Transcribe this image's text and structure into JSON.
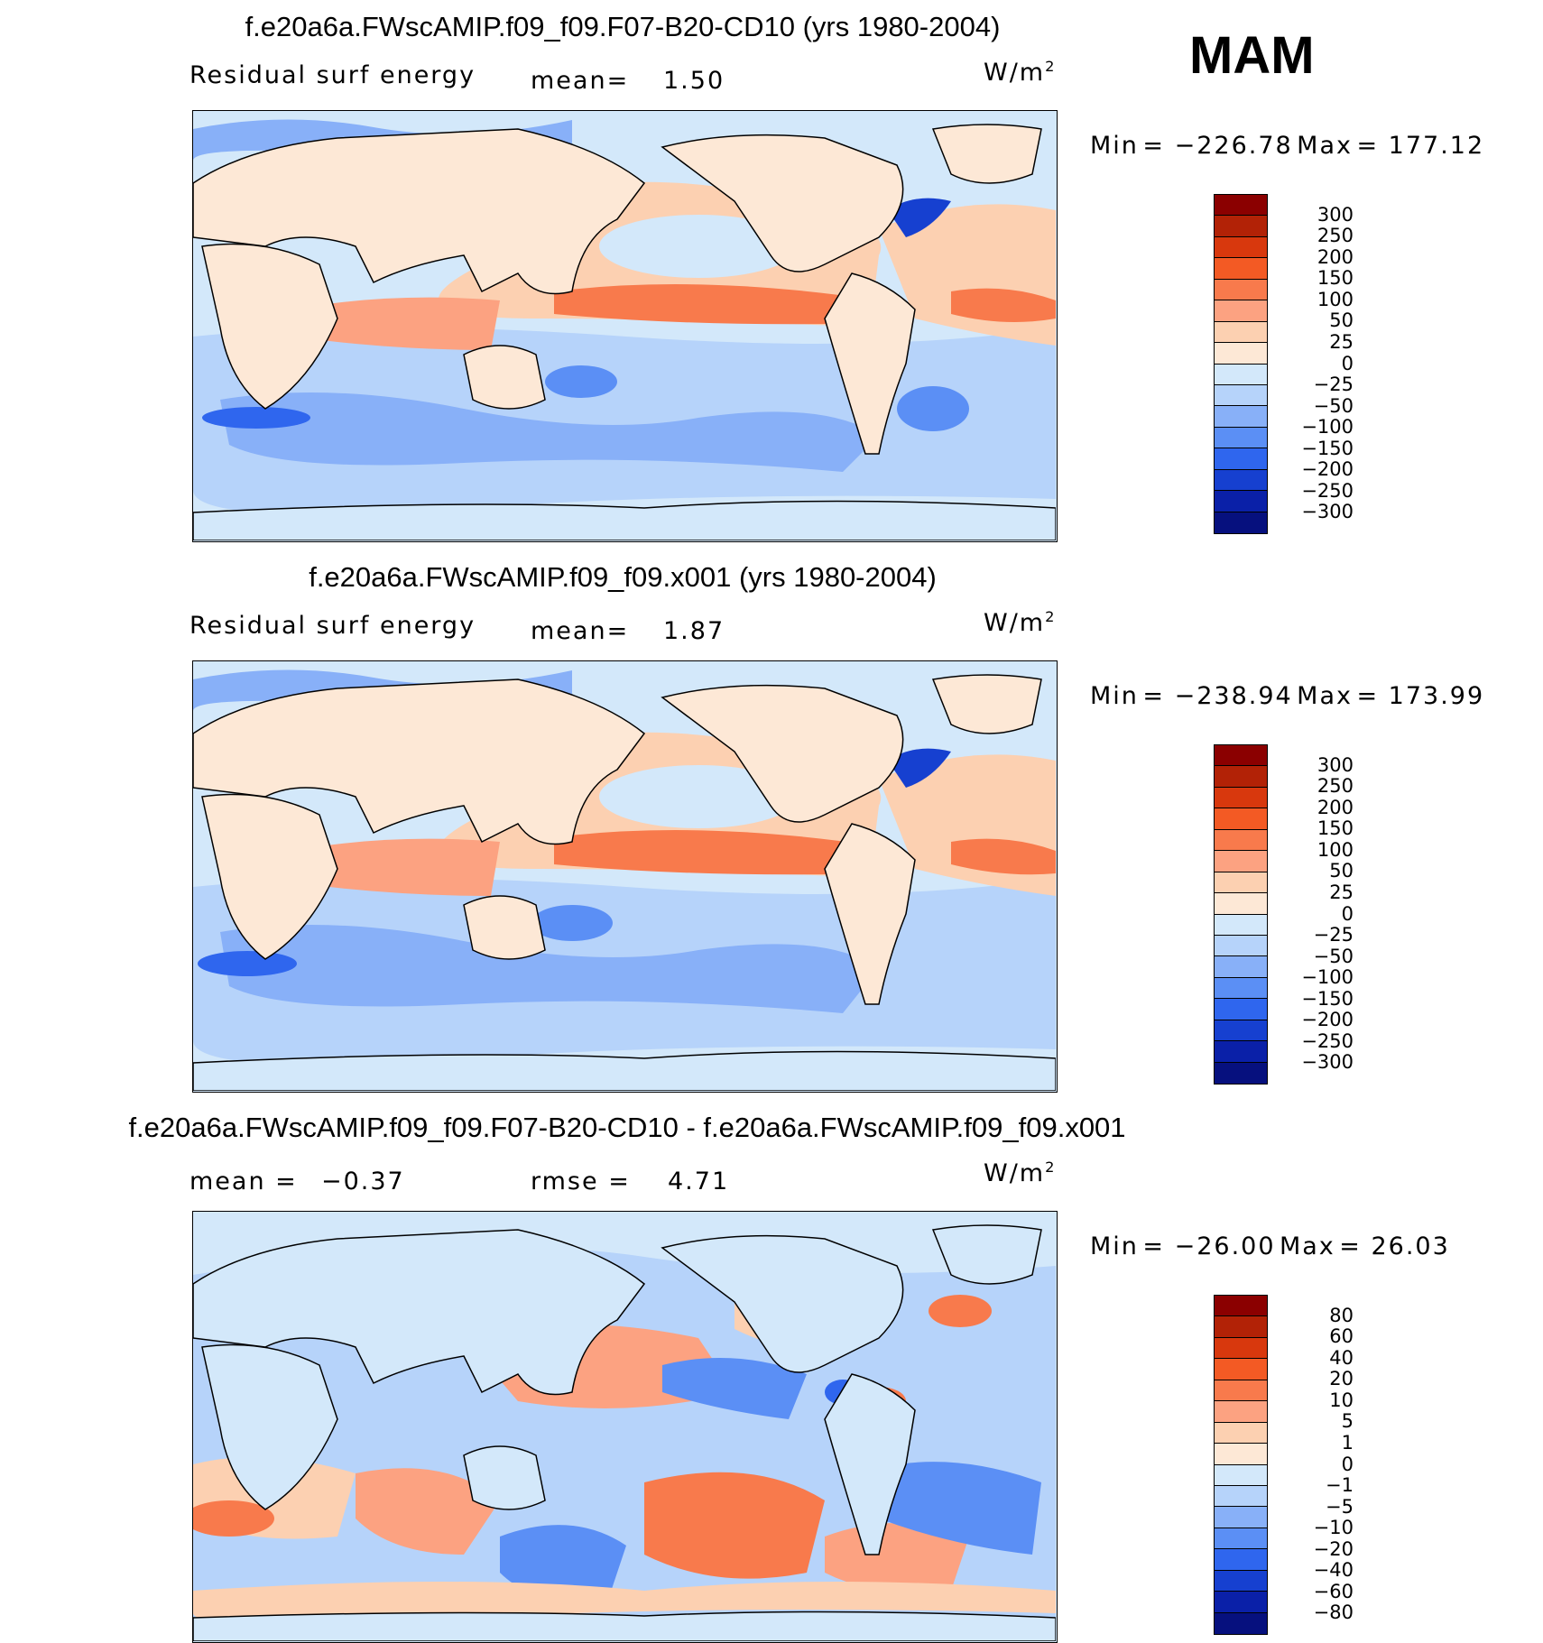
{
  "season": "MAM",
  "units": "W/m",
  "units_exp": "2",
  "panels": [
    {
      "title": "f.e20a6a.FWscAMIP.f09_f09.F07-B20-CD10 (yrs 1980-2004)",
      "left_label": "Residual surf energy",
      "stat_label": "mean=",
      "stat_value": "1.50",
      "min_label": "Min",
      "min_value": "−226.78",
      "max_label": "Max",
      "max_value": "177.12",
      "levels": [
        "300",
        "250",
        "200",
        "150",
        "100",
        "50",
        "25",
        "0",
        "−25",
        "−50",
        "−100",
        "−150",
        "−200",
        "−250",
        "−300"
      ]
    },
    {
      "title": "f.e20a6a.FWscAMIP.f09_f09.x001 (yrs 1980-2004)",
      "left_label": "Residual surf energy",
      "stat_label": "mean=",
      "stat_value": "1.87",
      "min_label": "Min",
      "min_value": "−238.94",
      "max_label": "Max",
      "max_value": "173.99",
      "levels": [
        "300",
        "250",
        "200",
        "150",
        "100",
        "50",
        "25",
        "0",
        "−25",
        "−50",
        "−100",
        "−150",
        "−200",
        "−250",
        "−300"
      ]
    },
    {
      "title": "f.e20a6a.FWscAMIP.f09_f09.F07-B20-CD10 - f.e20a6a.FWscAMIP.f09_f09.x001",
      "left_label": "mean =",
      "left_value": "−0.37",
      "stat_label": "rmse =",
      "stat_value": "4.71",
      "min_label": "Min",
      "min_value": "−26.00",
      "max_label": "Max",
      "max_value": "26.03",
      "levels": [
        "80",
        "60",
        "40",
        "20",
        "10",
        "5",
        "1",
        "0",
        "−1",
        "−5",
        "−10",
        "−20",
        "−40",
        "−60",
        "−80"
      ]
    }
  ],
  "colors": {
    "scale": [
      "#8b0000",
      "#b22206",
      "#d8380d",
      "#f35a24",
      "#f87a4c",
      "#fca281",
      "#fcd0b1",
      "#fde8d6",
      "#d3e8fa",
      "#b6d3fa",
      "#88b0f8",
      "#5b8ff5",
      "#2f66ee",
      "#1640d0",
      "#0a20a8",
      "#06107e"
    ],
    "land": "#fde8d6",
    "ocean": "#d3e8fa"
  }
}
